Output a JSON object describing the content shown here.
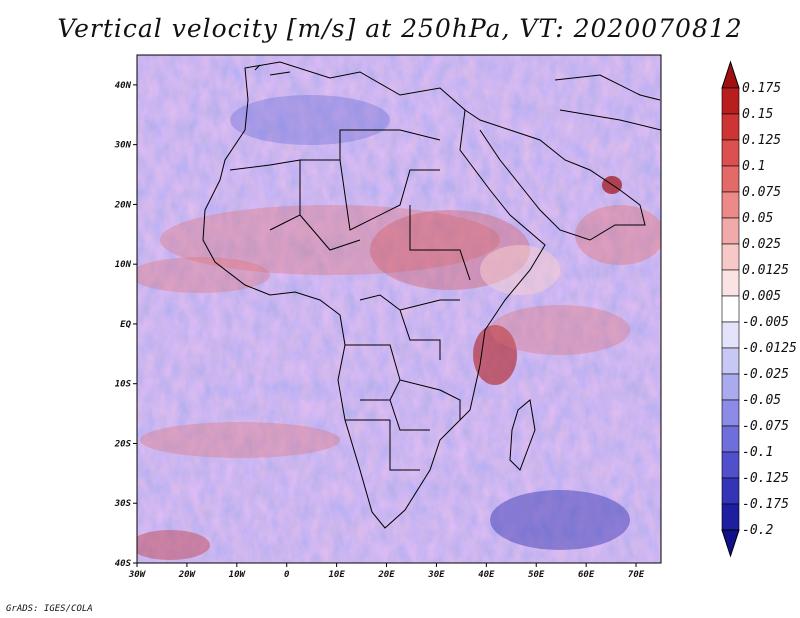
{
  "title": "Vertical velocity [m/s] at 250hPa, VT: 2020070812",
  "credit": "GrADS: IGES/COLA",
  "map": {
    "lon_range": [
      -30,
      75
    ],
    "lat_range": [
      -40,
      45
    ],
    "lat_ticks": [
      {
        "value": 40,
        "label": "40N"
      },
      {
        "value": 30,
        "label": "30N"
      },
      {
        "value": 20,
        "label": "20N"
      },
      {
        "value": 10,
        "label": "10N"
      },
      {
        "value": 0,
        "label": "EQ"
      },
      {
        "value": -10,
        "label": "10S"
      },
      {
        "value": -20,
        "label": "20S"
      },
      {
        "value": -30,
        "label": "30S"
      },
      {
        "value": -40,
        "label": "40S"
      }
    ],
    "lon_ticks": [
      {
        "value": -30,
        "label": "30W"
      },
      {
        "value": -20,
        "label": "20W"
      },
      {
        "value": -10,
        "label": "10W"
      },
      {
        "value": 0,
        "label": "0"
      },
      {
        "value": 10,
        "label": "10E"
      },
      {
        "value": 20,
        "label": "20E"
      },
      {
        "value": 30,
        "label": "30E"
      },
      {
        "value": 40,
        "label": "40E"
      },
      {
        "value": 50,
        "label": "50E"
      },
      {
        "value": 60,
        "label": "60E"
      },
      {
        "value": 70,
        "label": "70E"
      }
    ]
  },
  "colorbar": {
    "levels": [
      "0.175",
      "0.15",
      "0.125",
      "0.1",
      "0.075",
      "0.05",
      "0.025",
      "0.0125",
      "0.005",
      "-0.005",
      "-0.0125",
      "-0.025",
      "-0.05",
      "-0.075",
      "-0.1",
      "-0.125",
      "-0.175",
      "-0.2"
    ],
    "colors": [
      "#a01010",
      "#b81e1e",
      "#cf3434",
      "#dc5050",
      "#e46a6a",
      "#ec8a8a",
      "#f2a9a9",
      "#f7c8c8",
      "#fbe3e3",
      "#ffffff",
      "#e3e3fb",
      "#c8c8f5",
      "#aaaaee",
      "#8c8ce6",
      "#6e6edc",
      "#5050cc",
      "#3434b8",
      "#1e1ea0",
      "#10108a"
    ]
  }
}
